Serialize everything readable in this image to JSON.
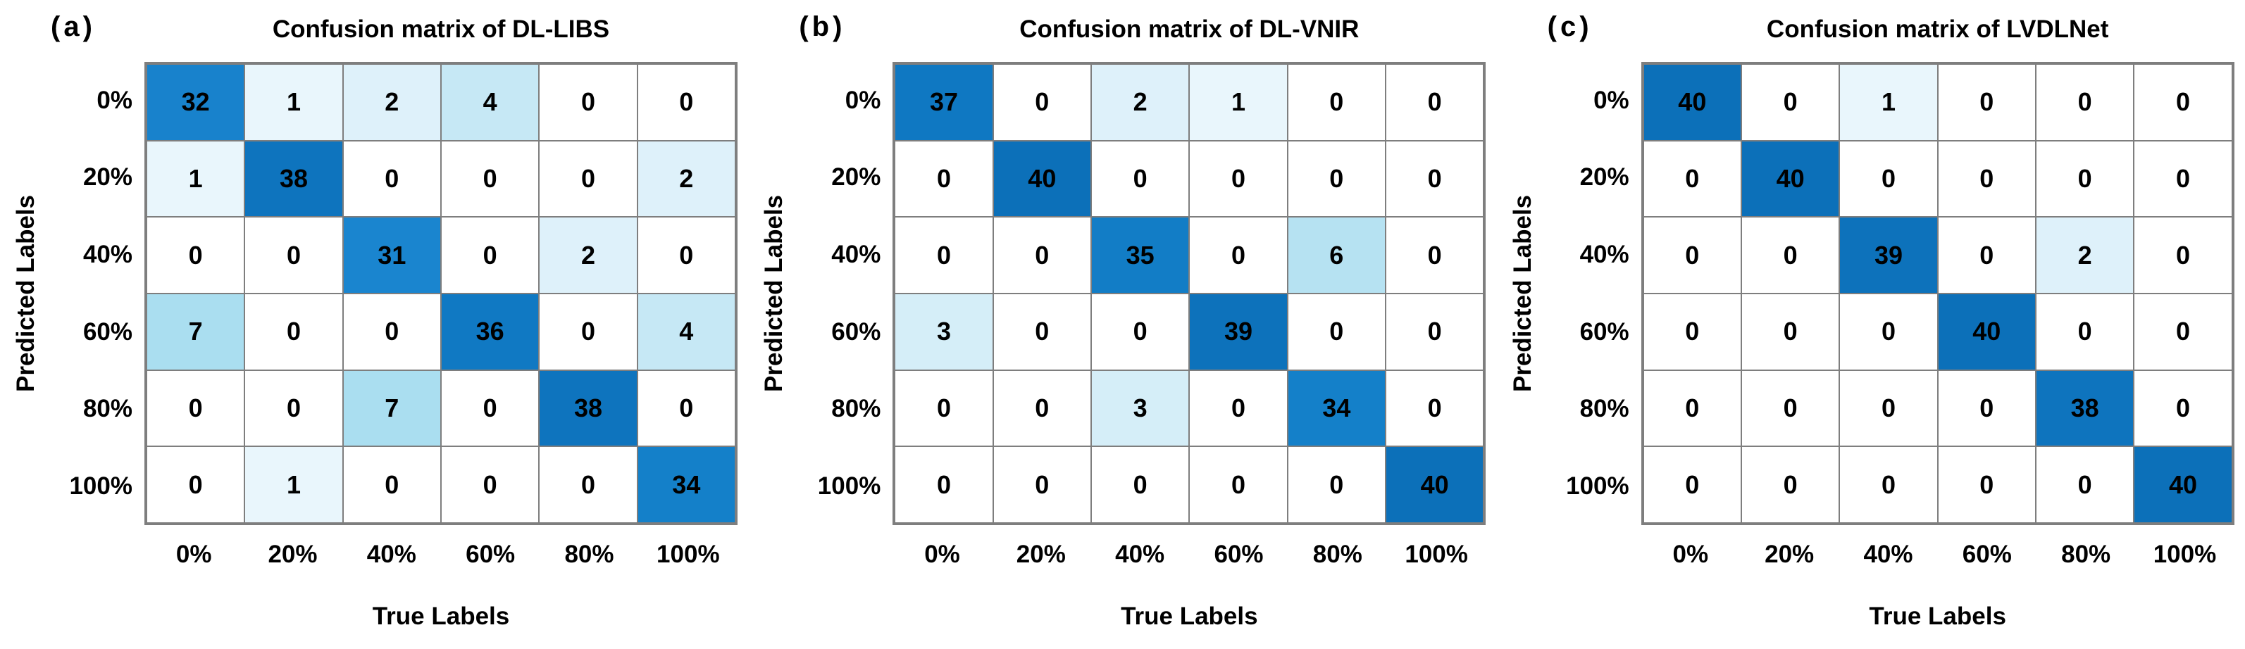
{
  "figure_background": "#ffffff",
  "style": {
    "grid_color": "#7e7e7e",
    "text_color": "#000000",
    "heat_high_color": "#0c70b9",
    "heat_low_color": "#ffffff",
    "value_colors": {
      "0": "#ffffff",
      "1": "#e9f6fc",
      "2": "#def1fa",
      "3": "#d5eef8",
      "4": "#c6e8f5",
      "6": "#b6e2f2",
      "7": "#aadef0",
      "31": "#1a85cf",
      "32": "#1882cc",
      "34": "#1480c9",
      "35": "#127dc6",
      "36": "#1079c3",
      "37": "#0f78c2",
      "38": "#0e74be",
      "39": "#0d72bb",
      "40": "#0c70b9"
    }
  },
  "chart_data": [
    {
      "type": "heatmap",
      "panel_label": "(a)",
      "title": "Confusion matrix of DL-LIBS",
      "xlabel": "True Labels",
      "ylabel": "Predicted Labels",
      "x_tick_labels": [
        "0%",
        "20%",
        "40%",
        "60%",
        "80%",
        "100%"
      ],
      "y_tick_labels": [
        "0%",
        "20%",
        "40%",
        "60%",
        "80%",
        "100%"
      ],
      "value_range": [
        0,
        40
      ],
      "grid": true,
      "matrix": [
        [
          32,
          1,
          2,
          4,
          0,
          0
        ],
        [
          1,
          38,
          0,
          0,
          0,
          2
        ],
        [
          0,
          0,
          31,
          0,
          2,
          0
        ],
        [
          7,
          0,
          0,
          36,
          0,
          4
        ],
        [
          0,
          0,
          7,
          0,
          38,
          0
        ],
        [
          0,
          1,
          0,
          0,
          0,
          34
        ]
      ]
    },
    {
      "type": "heatmap",
      "panel_label": "(b)",
      "title": "Confusion matrix of DL-VNIR",
      "xlabel": "True Labels",
      "ylabel": "Predicted Labels",
      "x_tick_labels": [
        "0%",
        "20%",
        "40%",
        "60%",
        "80%",
        "100%"
      ],
      "y_tick_labels": [
        "0%",
        "20%",
        "40%",
        "60%",
        "80%",
        "100%"
      ],
      "value_range": [
        0,
        40
      ],
      "grid": true,
      "matrix": [
        [
          37,
          0,
          2,
          1,
          0,
          0
        ],
        [
          0,
          40,
          0,
          0,
          0,
          0
        ],
        [
          0,
          0,
          35,
          0,
          6,
          0
        ],
        [
          3,
          0,
          0,
          39,
          0,
          0
        ],
        [
          0,
          0,
          3,
          0,
          34,
          0
        ],
        [
          0,
          0,
          0,
          0,
          0,
          40
        ]
      ]
    },
    {
      "type": "heatmap",
      "panel_label": "(c)",
      "title": "Confusion matrix of LVDLNet",
      "xlabel": "True Labels",
      "ylabel": "Predicted Labels",
      "x_tick_labels": [
        "0%",
        "20%",
        "40%",
        "60%",
        "80%",
        "100%"
      ],
      "y_tick_labels": [
        "0%",
        "20%",
        "40%",
        "60%",
        "80%",
        "100%"
      ],
      "value_range": [
        0,
        40
      ],
      "grid": true,
      "matrix": [
        [
          40,
          0,
          1,
          0,
          0,
          0
        ],
        [
          0,
          40,
          0,
          0,
          0,
          0
        ],
        [
          0,
          0,
          39,
          0,
          2,
          0
        ],
        [
          0,
          0,
          0,
          40,
          0,
          0
        ],
        [
          0,
          0,
          0,
          0,
          38,
          0
        ],
        [
          0,
          0,
          0,
          0,
          0,
          40
        ]
      ]
    }
  ]
}
